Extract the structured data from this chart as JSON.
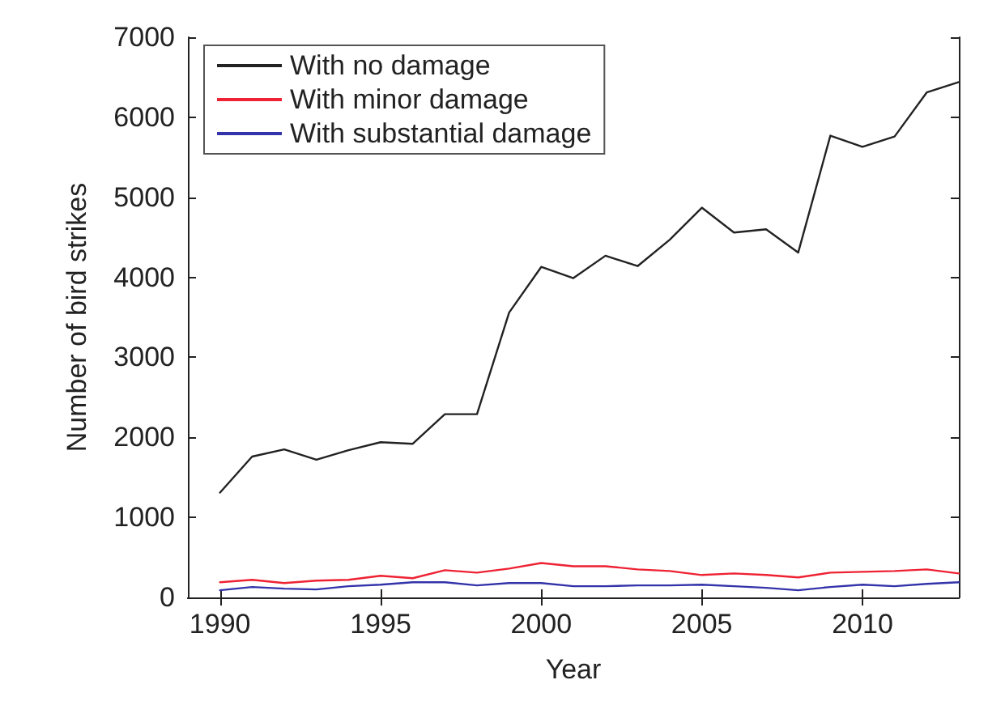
{
  "chart_data": {
    "type": "line",
    "xlabel": "Year",
    "ylabel": "Number of bird strikes",
    "x": [
      1990,
      1991,
      1992,
      1993,
      1994,
      1995,
      1996,
      1997,
      1998,
      1999,
      2000,
      2001,
      2002,
      2003,
      2004,
      2005,
      2006,
      2007,
      2008,
      2009,
      2010,
      2011,
      2012,
      2013
    ],
    "series": [
      {
        "name": "With no damage",
        "color": "#222222",
        "values": [
          1310,
          1760,
          1850,
          1720,
          1840,
          1940,
          1920,
          2290,
          2290,
          3560,
          4130,
          3990,
          4270,
          4140,
          4470,
          4870,
          4560,
          4600,
          4310,
          5770,
          5630,
          5760,
          6310,
          6440
        ]
      },
      {
        "name": "With minor damage",
        "color": "#ee2233",
        "values": [
          190,
          220,
          180,
          210,
          220,
          270,
          240,
          340,
          310,
          360,
          430,
          390,
          390,
          350,
          330,
          280,
          300,
          280,
          250,
          310,
          320,
          330,
          350,
          300
        ]
      },
      {
        "name": "With substantial damage",
        "color": "#3333aa",
        "values": [
          90,
          130,
          110,
          100,
          140,
          160,
          190,
          190,
          150,
          180,
          180,
          140,
          140,
          150,
          150,
          160,
          140,
          120,
          90,
          130,
          160,
          140,
          170,
          190
        ]
      }
    ],
    "xlim": [
      1989,
      2013
    ],
    "xticks": [
      1990,
      1995,
      2000,
      2005,
      2010
    ],
    "ylim": [
      0,
      7000
    ],
    "yticks": [
      0,
      1000,
      2000,
      3000,
      4000,
      5000,
      6000,
      7000
    ],
    "grid": false,
    "legend": "top left",
    "marker": "none",
    "line_style": "solid"
  }
}
